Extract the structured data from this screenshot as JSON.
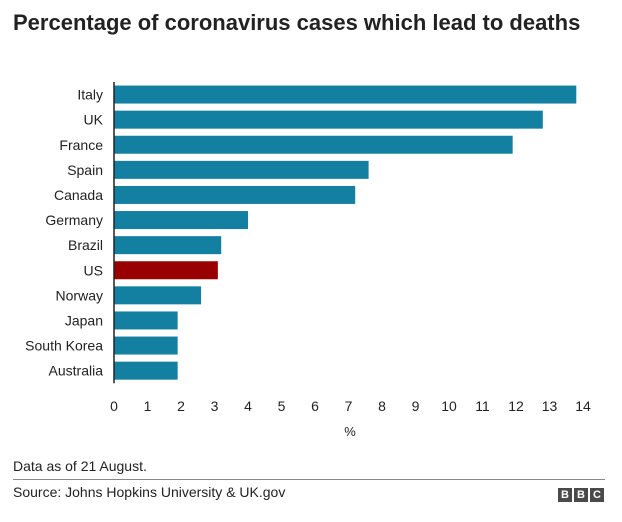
{
  "chart_data": {
    "type": "bar",
    "orientation": "horizontal",
    "title": "Percentage of coronavirus cases which lead to deaths",
    "categories": [
      "Italy",
      "UK",
      "France",
      "Spain",
      "Canada",
      "Germany",
      "Brazil",
      "US",
      "Norway",
      "Japan",
      "South Korea",
      "Australia"
    ],
    "values": [
      13.8,
      12.8,
      11.9,
      7.6,
      7.2,
      4.0,
      3.2,
      3.1,
      2.6,
      1.9,
      1.9,
      1.9
    ],
    "colors": [
      "#1380a1",
      "#1380a1",
      "#1380a1",
      "#1380a1",
      "#1380a1",
      "#1380a1",
      "#1380a1",
      "#990000",
      "#1380a1",
      "#1380a1",
      "#1380a1",
      "#1380a1"
    ],
    "xlabel": "%",
    "ylabel": "",
    "xlim": [
      0,
      14
    ],
    "xticks": [
      0,
      1,
      2,
      3,
      4,
      5,
      6,
      7,
      8,
      9,
      10,
      11,
      12,
      13,
      14
    ],
    "grid": false
  },
  "footnote": "Data as of 21 August.",
  "source": "Source: Johns Hopkins University & UK.gov",
  "logo": [
    "B",
    "B",
    "C"
  ]
}
